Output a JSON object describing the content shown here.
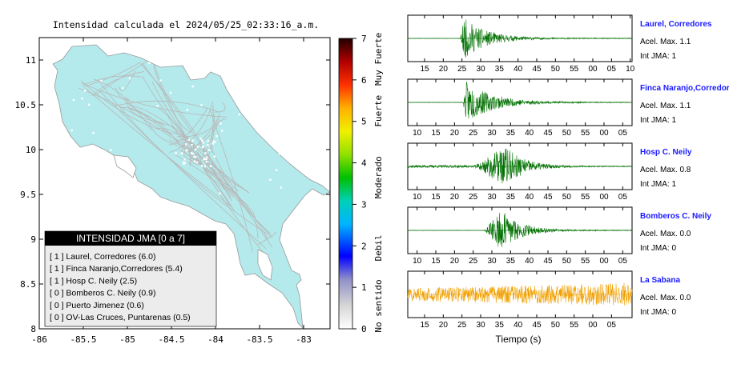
{
  "title": "Intensidad calculada el 2024/05/25_02:33:16_a.m.",
  "map": {
    "x_ticks": [
      "-86",
      "-85.5",
      "-85",
      "-84.5",
      "-84",
      "-83.5",
      "-83"
    ],
    "x_values": [
      -86,
      -85.5,
      -85,
      -84.5,
      -84,
      -83.5,
      -83
    ],
    "xlim": [
      -86,
      -82.7
    ],
    "y_ticks": [
      "11",
      "10.5",
      "10",
      "9.5",
      "9",
      "8.5",
      "8"
    ],
    "y_values": [
      11,
      10.5,
      10,
      9.5,
      9,
      8.5,
      8
    ],
    "ylim": [
      8,
      11.25
    ],
    "land_color": "#b4eaec",
    "road_color": "#b8b8b8"
  },
  "legend": {
    "title": "INTENSIDAD JMA [0 a 7]",
    "items": [
      "[ 1 ]  Laurel, Corredores (6.0)",
      "[ 1 ]  Finca Naranjo,Corredores (5.4)",
      "[ 1 ]  Hosp C. Neily (2.5)",
      "[ 0 ]  Bomberos C. Neily (0.9)",
      "[ 0 ]  Puerto Jimenez (0.6)",
      "[ 0 ]  OV-Las Cruces, Puntarenas (0.5)"
    ]
  },
  "colorbar": {
    "ticks": [
      "7",
      "6",
      "5",
      "4",
      "3",
      "2",
      "1",
      "0"
    ],
    "tick_values": [
      7,
      6,
      5,
      4,
      3,
      2,
      1,
      0
    ],
    "range": [
      0,
      7
    ],
    "labels": [
      "Muy Fuerte",
      "Fuerte",
      "Moderado",
      "Debil",
      "No sentido"
    ],
    "label_values": [
      6.5,
      5.25,
      3.65,
      1.95,
      0.55
    ]
  },
  "chart_data": [
    {
      "type": "line",
      "title": "Laurel, Corredores",
      "series_color": "#007000",
      "x_ticks": [
        "15",
        "20",
        "25",
        "30",
        "35",
        "40",
        "45",
        "50",
        "55",
        "00",
        "05",
        "10"
      ],
      "x_tick_values": [
        15,
        20,
        25,
        30,
        35,
        40,
        45,
        50,
        55,
        60,
        65,
        70
      ],
      "xlim": [
        10.5,
        70.5
      ],
      "envelope": {
        "onset": 24.6,
        "peak": 25.5,
        "amp": 0.95,
        "decay": 6,
        "pre_noise": 0.01,
        "seed": 11
      },
      "info": [
        "Acel. Max. 1.1",
        "Int JMA: 1"
      ]
    },
    {
      "type": "line",
      "title": "Finca Naranjo,Corredores",
      "series_color": "#007000",
      "x_ticks": [
        "10",
        "15",
        "20",
        "25",
        "30",
        "35",
        "40",
        "45",
        "50",
        "55",
        "00",
        "05"
      ],
      "x_tick_values": [
        10,
        15,
        20,
        25,
        30,
        35,
        40,
        45,
        50,
        55,
        60,
        65
      ],
      "xlim": [
        7.5,
        67.5
      ],
      "envelope": {
        "onset": 22.3,
        "peak": 23.2,
        "amp": 0.95,
        "decay": 7,
        "pre_noise": 0.01,
        "seed": 23
      },
      "info": [
        "Acel. Max. 1.1",
        "Int JMA: 1"
      ]
    },
    {
      "type": "line",
      "title": "Hosp C. Neily",
      "series_color": "#007000",
      "x_ticks": [
        "10",
        "15",
        "20",
        "25",
        "30",
        "35",
        "40",
        "45",
        "50",
        "55",
        "00",
        "05"
      ],
      "x_tick_values": [
        10,
        15,
        20,
        25,
        30,
        35,
        40,
        45,
        50,
        55,
        60,
        65
      ],
      "xlim": [
        7.5,
        67.5
      ],
      "envelope": {
        "onset": 25.5,
        "peak": 33.5,
        "amp": 0.95,
        "decay": 5,
        "pre_noise": 0.06,
        "seed": 37
      },
      "info": [
        "Acel. Max. 0.8",
        "Int JMA: 1"
      ]
    },
    {
      "type": "line",
      "title": "Bomberos C. Neily",
      "series_color": "#007000",
      "x_ticks": [
        "10",
        "15",
        "20",
        "25",
        "30",
        "35",
        "40",
        "45",
        "50",
        "55",
        "00",
        "05"
      ],
      "x_tick_values": [
        10,
        15,
        20,
        25,
        30,
        35,
        40,
        45,
        50,
        55,
        60,
        65
      ],
      "xlim": [
        7.5,
        67.5
      ],
      "envelope": {
        "onset": 28,
        "peak": 32.5,
        "amp": 0.95,
        "decay": 5,
        "pre_noise": 0.01,
        "seed": 41
      },
      "info": [
        "Acel. Max. 0.0",
        "Int JMA: 0"
      ]
    },
    {
      "type": "line",
      "title": "La Sabana",
      "series_color": "#f0a000",
      "x_ticks": [
        "15",
        "20",
        "25",
        "30",
        "35",
        "40",
        "45",
        "50",
        "55",
        "00",
        "05"
      ],
      "x_tick_values": [
        15,
        20,
        25,
        30,
        35,
        40,
        45,
        50,
        55,
        60,
        65
      ],
      "xlim": [
        10.5,
        70.5
      ],
      "xlabel": "Tiempo (s)",
      "envelope": {
        "noise": true,
        "amp": 0.55,
        "grow": 0.95,
        "seed": 57
      },
      "info": [
        "Acel. Max. 0.0",
        "Int JMA: 0"
      ]
    }
  ]
}
